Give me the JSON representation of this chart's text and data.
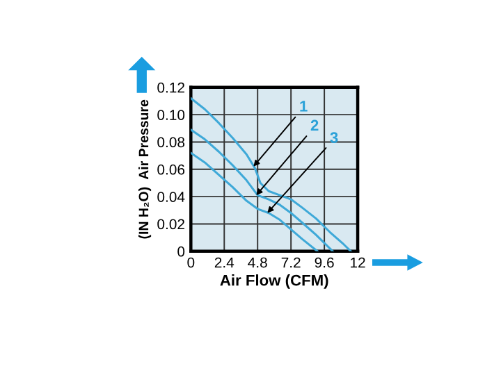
{
  "chart_data": {
    "type": "line",
    "xlabel": "Air Flow (CFM)",
    "ylabel": "(IN H₂O)  Air Pressure",
    "xlim": [
      0,
      12
    ],
    "ylim": [
      0,
      0.12
    ],
    "xticks": [
      0,
      2.4,
      4.8,
      7.2,
      9.6,
      12
    ],
    "yticks": [
      0,
      0.02,
      0.04,
      0.06,
      0.08,
      {
        "value": 0.1,
        "label": "0.10"
      },
      0.12
    ],
    "grid": true,
    "marker": "none",
    "line_style": "solid",
    "series": [
      {
        "color": "#3fa9d8",
        "x": [
          0,
          1,
          2,
          3,
          4,
          4.6,
          5,
          5.6,
          6.4,
          7.2,
          8,
          9,
          10,
          11,
          11.5
        ],
        "values": [
          0.112,
          0.104,
          0.094,
          0.083,
          0.071,
          0.061,
          0.05,
          0.044,
          0.041,
          0.038,
          0.032,
          0.024,
          0.014,
          0.005,
          0
        ]
      },
      {
        "color": "#3fa9d8",
        "x": [
          0,
          1,
          2,
          3,
          4,
          4.8,
          5.6,
          6.4,
          7.2,
          8,
          9,
          10.2
        ],
        "values": [
          0.089,
          0.082,
          0.073,
          0.063,
          0.052,
          0.041,
          0.038,
          0.034,
          0.028,
          0.021,
          0.012,
          0
        ]
      },
      {
        "color": "#3fa9d8",
        "x": [
          0,
          1,
          2,
          3,
          4,
          4.8,
          5.6,
          6.4,
          7.2,
          8,
          9.1
        ],
        "values": [
          0.072,
          0.065,
          0.056,
          0.047,
          0.037,
          0.031,
          0.028,
          0.023,
          0.016,
          0.009,
          0
        ]
      }
    ],
    "annotations": [
      {
        "text": "1",
        "x": 4.5,
        "y": 0.062
      },
      {
        "text": "2",
        "x": 4.7,
        "y": 0.041
      },
      {
        "text": "3",
        "x": 5.5,
        "y": 0.028
      }
    ]
  }
}
